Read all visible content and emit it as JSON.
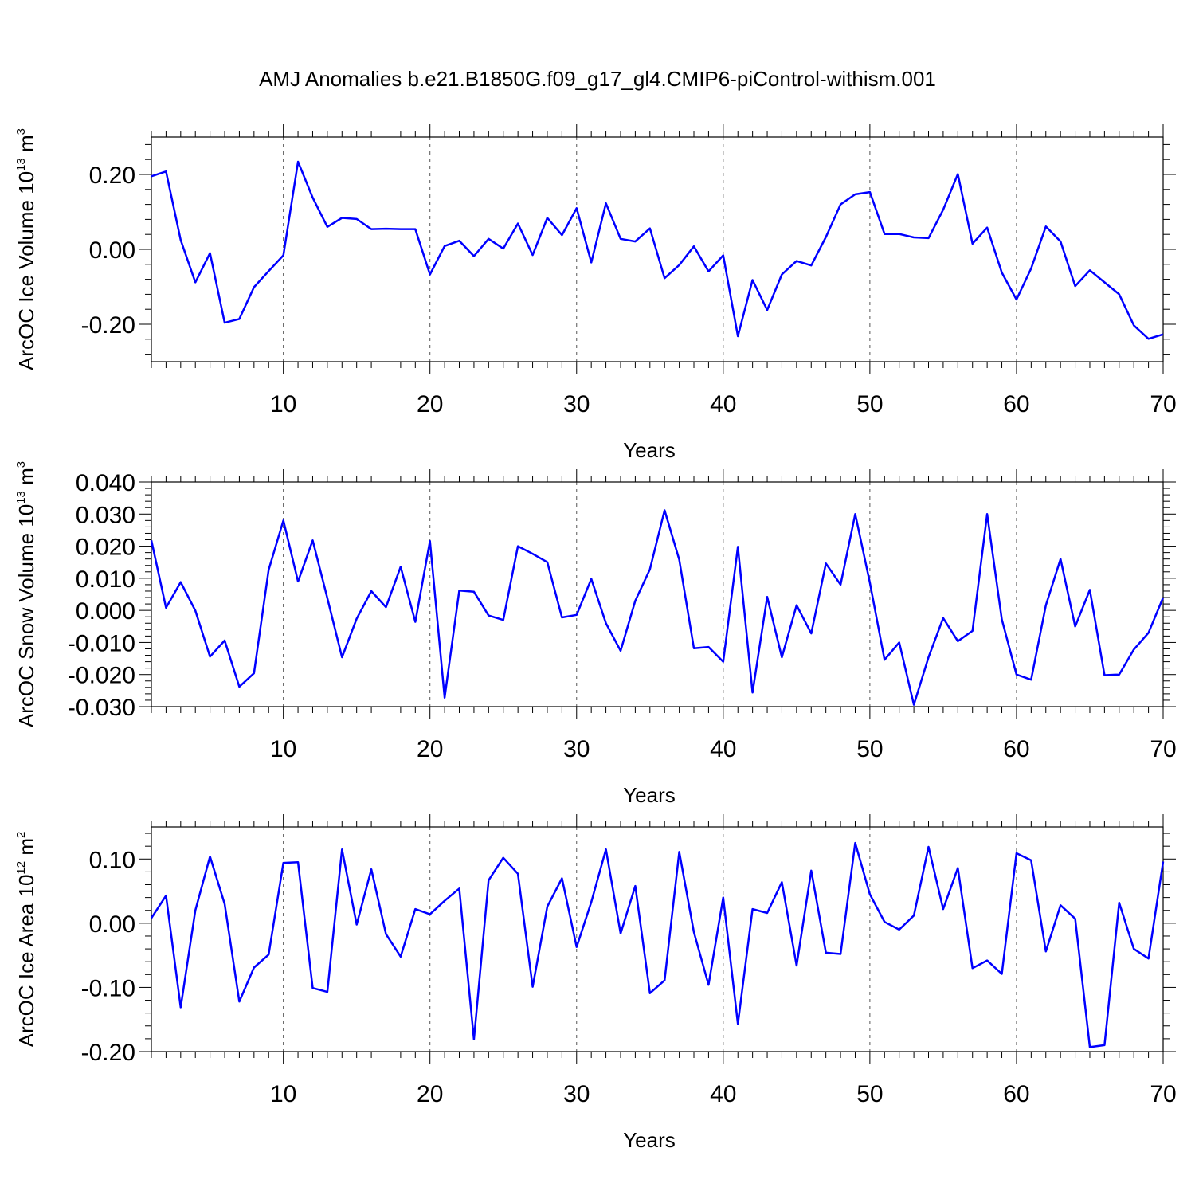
{
  "title": "AMJ Anomalies b.e21.B1850G.f09_g17_gl4.CMIP6-piControl-withism.001",
  "line_color": "#0000ff",
  "chart_data": [
    {
      "type": "line",
      "ylabel": {
        "main": "ArcOC Ice Volume 10",
        "exp": "13",
        "unit": " m",
        "unit_exp": "3"
      },
      "xlabel": "Years",
      "xlim": [
        1,
        70
      ],
      "ylim": [
        -0.3,
        0.3
      ],
      "xticks": [
        10,
        20,
        30,
        40,
        50,
        60,
        70
      ],
      "yticks": [
        -0.2,
        0.0,
        0.2
      ],
      "ytick_labels": [
        "-0.20",
        "0.00",
        "0.20"
      ],
      "grid": "dashed vertical at x ticks",
      "x": [
        1,
        2,
        3,
        4,
        5,
        6,
        7,
        8,
        9,
        10,
        11,
        12,
        13,
        14,
        15,
        16,
        17,
        18,
        19,
        20,
        21,
        22,
        23,
        24,
        25,
        26,
        27,
        28,
        29,
        30,
        31,
        32,
        33,
        34,
        35,
        36,
        37,
        38,
        39,
        40,
        41,
        42,
        43,
        44,
        45,
        46,
        47,
        48,
        49,
        50,
        51,
        52,
        53,
        54,
        55,
        56,
        57,
        58,
        59,
        60,
        61,
        62,
        63,
        64,
        65,
        66,
        67,
        68,
        69,
        70
      ],
      "series": [
        {
          "values": [
            0.195,
            0.208,
            0.025,
            -0.088,
            -0.01,
            -0.196,
            -0.186,
            -0.101,
            -0.058,
            -0.016,
            0.234,
            0.138,
            0.06,
            0.084,
            0.081,
            0.054,
            0.055,
            0.054,
            0.054,
            -0.067,
            0.009,
            0.023,
            -0.018,
            0.028,
            0.002,
            0.069,
            -0.015,
            0.084,
            0.038,
            0.11,
            -0.035,
            0.123,
            0.028,
            0.021,
            0.056,
            -0.077,
            -0.042,
            0.008,
            -0.059,
            -0.016,
            -0.232,
            -0.082,
            -0.162,
            -0.067,
            -0.031,
            -0.043,
            0.033,
            0.12,
            0.147,
            0.153,
            0.041,
            0.041,
            0.032,
            0.03,
            0.106,
            0.201,
            0.015,
            0.058,
            -0.062,
            -0.134,
            -0.051,
            0.061,
            0.021,
            -0.098,
            -0.056,
            -0.088,
            -0.12,
            -0.203,
            -0.239,
            -0.227
          ]
        }
      ]
    },
    {
      "type": "line",
      "ylabel": {
        "main": "ArcOC Snow Volume 10",
        "exp": "13",
        "unit": " m",
        "unit_exp": "3"
      },
      "xlabel": "Years",
      "xlim": [
        1,
        70
      ],
      "ylim": [
        -0.03,
        0.04
      ],
      "xticks": [
        10,
        20,
        30,
        40,
        50,
        60,
        70
      ],
      "yticks": [
        -0.03,
        -0.02,
        -0.01,
        0.0,
        0.01,
        0.02,
        0.03,
        0.04
      ],
      "ytick_labels": [
        "-0.030",
        "-0.020",
        "-0.010",
        "0.000",
        "0.010",
        "0.020",
        "0.030",
        "0.040"
      ],
      "grid": "dashed vertical at x ticks",
      "x": [
        1,
        2,
        3,
        4,
        5,
        6,
        7,
        8,
        9,
        10,
        11,
        12,
        13,
        14,
        15,
        16,
        17,
        18,
        19,
        20,
        21,
        22,
        23,
        24,
        25,
        26,
        27,
        28,
        29,
        30,
        31,
        32,
        33,
        34,
        35,
        36,
        37,
        38,
        39,
        40,
        41,
        42,
        43,
        44,
        45,
        46,
        47,
        48,
        49,
        50,
        51,
        52,
        53,
        54,
        55,
        56,
        57,
        58,
        59,
        60,
        61,
        62,
        63,
        64,
        65,
        66,
        67,
        68,
        69,
        70
      ],
      "series": [
        {
          "values": [
            0.0218,
            0.0008,
            0.0088,
            -0.0001,
            -0.0144,
            -0.0094,
            -0.0238,
            -0.0196,
            0.0126,
            0.028,
            0.009,
            0.0218,
            0.0038,
            -0.0146,
            -0.0026,
            0.006,
            0.001,
            0.0136,
            -0.0036,
            0.0216,
            -0.0272,
            0.0062,
            0.0058,
            -0.0016,
            -0.003,
            0.02,
            0.0176,
            0.015,
            -0.0022,
            -0.0014,
            0.0098,
            -0.004,
            -0.0126,
            0.003,
            0.0128,
            0.0312,
            0.0158,
            -0.0118,
            -0.0114,
            -0.016,
            0.0198,
            -0.0256,
            0.0042,
            -0.0146,
            0.0016,
            -0.0072,
            0.0146,
            0.008,
            0.03,
            0.0086,
            -0.0154,
            -0.01,
            -0.0294,
            -0.0146,
            -0.0024,
            -0.0096,
            -0.0064,
            0.03,
            -0.0028,
            -0.02,
            -0.0216,
            0.0016,
            0.016,
            -0.005,
            0.0064,
            -0.0202,
            -0.02,
            -0.0122,
            -0.007,
            0.004
          ]
        }
      ]
    },
    {
      "type": "line",
      "ylabel": {
        "main": "ArcOC Ice Area 10",
        "exp": "12",
        "unit": " m",
        "unit_exp": "2"
      },
      "xlabel": "Years",
      "xlim": [
        1,
        70
      ],
      "ylim": [
        -0.2,
        0.15
      ],
      "xticks": [
        10,
        20,
        30,
        40,
        50,
        60,
        70
      ],
      "yticks": [
        -0.2,
        -0.1,
        0.0,
        0.1
      ],
      "ytick_labels": [
        "-0.20",
        "-0.10",
        "0.00",
        "0.10"
      ],
      "grid": "dashed vertical at x ticks",
      "x": [
        1,
        2,
        3,
        4,
        5,
        6,
        7,
        8,
        9,
        10,
        11,
        12,
        13,
        14,
        15,
        16,
        17,
        18,
        19,
        20,
        21,
        22,
        23,
        24,
        25,
        26,
        27,
        28,
        29,
        30,
        31,
        32,
        33,
        34,
        35,
        36,
        37,
        38,
        39,
        40,
        41,
        42,
        43,
        44,
        45,
        46,
        47,
        48,
        49,
        50,
        51,
        52,
        53,
        54,
        55,
        56,
        57,
        58,
        59,
        60,
        61,
        62,
        63,
        64,
        65,
        66,
        67,
        68,
        69,
        70
      ],
      "series": [
        {
          "values": [
            0.008,
            0.043,
            -0.131,
            0.02,
            0.104,
            0.03,
            -0.122,
            -0.069,
            -0.049,
            0.094,
            0.095,
            -0.101,
            -0.107,
            0.115,
            -0.002,
            0.084,
            -0.017,
            -0.052,
            0.022,
            0.014,
            0.035,
            0.054,
            -0.181,
            0.067,
            0.102,
            0.077,
            -0.099,
            0.026,
            0.07,
            -0.037,
            0.033,
            0.115,
            -0.016,
            0.058,
            -0.109,
            -0.089,
            0.111,
            -0.014,
            -0.096,
            0.04,
            -0.157,
            0.022,
            0.016,
            0.064,
            -0.066,
            0.082,
            -0.046,
            -0.048,
            0.125,
            0.045,
            0.002,
            -0.01,
            0.012,
            0.119,
            0.022,
            0.086,
            -0.07,
            -0.058,
            -0.079,
            0.109,
            0.098,
            -0.044,
            0.028,
            0.007,
            -0.193,
            -0.19,
            0.032,
            -0.04,
            -0.055,
            0.096
          ]
        }
      ]
    }
  ]
}
